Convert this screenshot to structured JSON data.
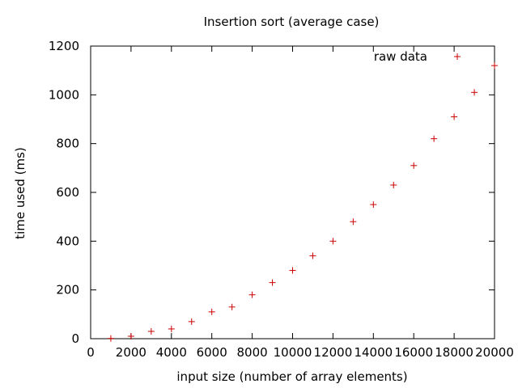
{
  "chart_data": {
    "type": "scatter",
    "title": "Insertion sort (average case)",
    "xlabel": "input size (number of array elements)",
    "ylabel": "time used (ms)",
    "xlim": [
      0,
      20000
    ],
    "ylim": [
      0,
      1200
    ],
    "x_ticks": [
      0,
      2000,
      4000,
      6000,
      8000,
      10000,
      12000,
      14000,
      16000,
      18000,
      20000
    ],
    "y_ticks": [
      0,
      200,
      400,
      600,
      800,
      1000,
      1200
    ],
    "x_tick_labels": [
      "0",
      "2000",
      "4000",
      "6000",
      "8000",
      "10000",
      "12000",
      "14000",
      "16000",
      "18000",
      "20000"
    ],
    "y_tick_labels": [
      "0",
      "200",
      "400",
      "600",
      "800",
      "1000",
      "1200"
    ],
    "grid": false,
    "legend_position": "top-right",
    "marker": "plus",
    "series": [
      {
        "name": "raw data",
        "color": "#cc0000",
        "x": [
          1000,
          2000,
          3000,
          4000,
          5000,
          6000,
          7000,
          8000,
          9000,
          10000,
          11000,
          12000,
          13000,
          14000,
          15000,
          16000,
          17000,
          18000,
          19000,
          20000
        ],
        "y": [
          1,
          10,
          30,
          40,
          70,
          110,
          130,
          180,
          230,
          280,
          340,
          400,
          480,
          550,
          630,
          710,
          820,
          910,
          1010,
          1120
        ]
      }
    ]
  }
}
